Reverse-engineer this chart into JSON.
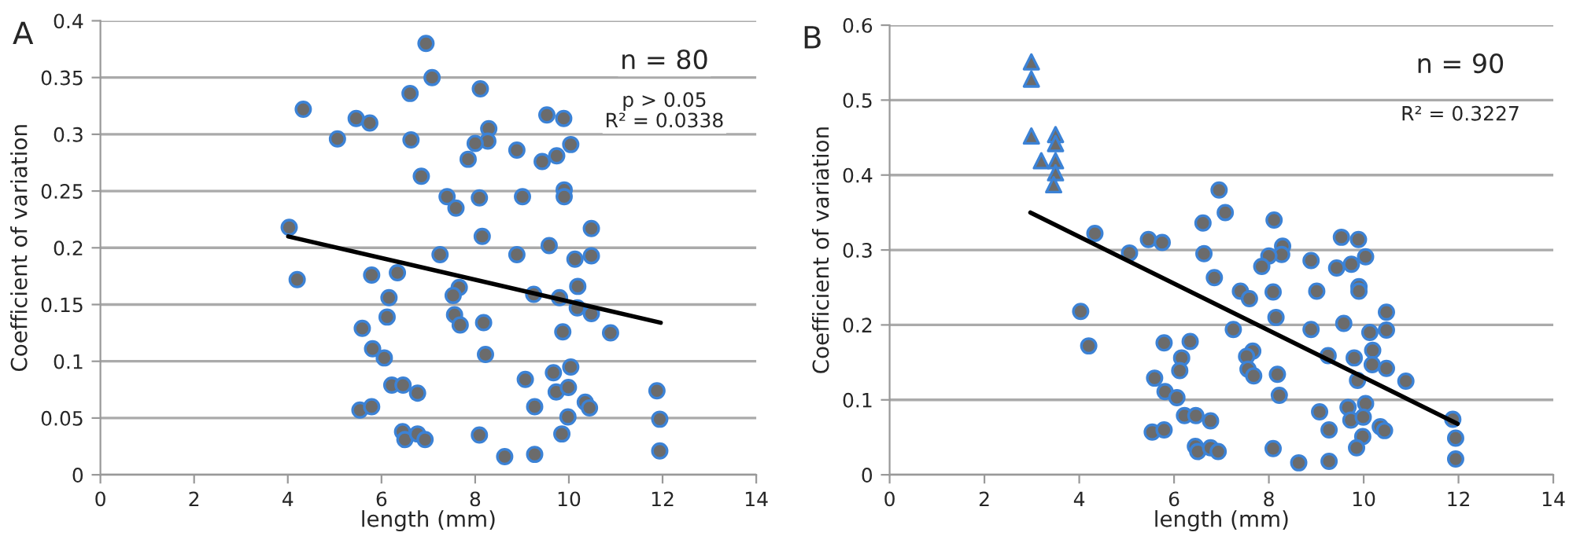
{
  "chart_data": [
    {
      "type": "scatter",
      "title": "A",
      "xlabel": "length (mm)",
      "ylabel": "Coefficient of variation",
      "xlim": [
        0,
        14
      ],
      "xticks": [
        0,
        2,
        4,
        6,
        8,
        10,
        12,
        14
      ],
      "ylim": [
        0,
        0.4
      ],
      "yticks": [
        0,
        0.05,
        0.1,
        0.15,
        0.2,
        0.25,
        0.3,
        0.35,
        0.4
      ],
      "grid": "y",
      "legend": false,
      "annotations": [
        "n = 80",
        "p > 0.05\nR² = 0.0338"
      ],
      "series": [
        {
          "type": "scatter",
          "marker": "circle",
          "color": "#6b6b6b",
          "x": [
            4.03,
            4.2,
            4.33,
            5.06,
            5.46,
            5.75,
            6.95,
            7.08,
            6.61,
            6.63,
            6.85,
            7.4,
            7.59,
            7.25,
            8.11,
            8.29,
            8.27,
            8.0,
            7.85,
            8.09,
            8.15,
            5.79,
            6.34,
            7.66,
            7.53,
            6.16,
            6.12,
            7.56,
            7.68,
            8.18,
            8.22,
            5.59,
            5.81,
            6.06,
            6.22,
            6.46,
            6.77,
            5.54,
            5.79,
            6.45,
            6.5,
            6.77,
            6.93,
            8.09,
            8.63,
            9.53,
            9.89,
            8.89,
            10.04,
            9.74,
            9.43,
            9.9,
            9.9,
            9.01,
            10.48,
            9.58,
            8.89,
            10.13,
            10.48,
            10.19,
            9.25,
            9.8,
            10.18,
            10.48,
            9.87,
            10.89,
            9.07,
            9.67,
            10.04,
            9.73,
            9.99,
            9.27,
            10.35,
            10.44,
            9.98,
            9.85,
            9.27,
            11.88,
            11.94,
            11.94
          ],
          "values": [
            0.218,
            0.172,
            0.322,
            0.296,
            0.314,
            0.31,
            0.38,
            0.35,
            0.336,
            0.295,
            0.263,
            0.245,
            0.235,
            0.194,
            0.34,
            0.305,
            0.294,
            0.292,
            0.278,
            0.244,
            0.21,
            0.176,
            0.178,
            0.165,
            0.158,
            0.156,
            0.139,
            0.141,
            0.132,
            0.134,
            0.106,
            0.129,
            0.111,
            0.103,
            0.079,
            0.079,
            0.072,
            0.057,
            0.06,
            0.038,
            0.031,
            0.036,
            0.031,
            0.035,
            0.016,
            0.317,
            0.314,
            0.286,
            0.291,
            0.281,
            0.276,
            0.251,
            0.245,
            0.245,
            0.217,
            0.202,
            0.194,
            0.19,
            0.193,
            0.166,
            0.159,
            0.156,
            0.147,
            0.142,
            0.126,
            0.125,
            0.084,
            0.09,
            0.095,
            0.073,
            0.077,
            0.06,
            0.064,
            0.059,
            0.051,
            0.036,
            0.018,
            0.074,
            0.049,
            0.021
          ]
        },
        {
          "type": "line",
          "color": "#000000",
          "x": [
            4.01,
            11.96
          ],
          "values": [
            0.21,
            0.134
          ]
        }
      ]
    },
    {
      "type": "scatter",
      "title": "B",
      "xlabel": "length (mm)",
      "ylabel": "Coefficient of variation",
      "xlim": [
        0,
        14
      ],
      "xticks": [
        0,
        2,
        4,
        6,
        8,
        10,
        12,
        14
      ],
      "ylim": [
        0,
        0.6
      ],
      "yticks": [
        0,
        0.1,
        0.2,
        0.3,
        0.4,
        0.5,
        0.6
      ],
      "grid": "y",
      "legend": false,
      "annotations": [
        "n = 90",
        "R² = 0.3227"
      ],
      "series": [
        {
          "type": "scatter",
          "marker": "circle",
          "color": "#6b6b6b",
          "x": [
            4.03,
            4.2,
            4.33,
            5.06,
            5.46,
            5.75,
            6.95,
            7.08,
            6.61,
            6.63,
            6.85,
            7.4,
            7.59,
            7.25,
            8.11,
            8.29,
            8.27,
            8.0,
            7.85,
            8.09,
            8.15,
            5.79,
            6.34,
            7.66,
            7.53,
            6.16,
            6.12,
            7.56,
            7.68,
            8.18,
            8.22,
            5.59,
            5.81,
            6.06,
            6.22,
            6.46,
            6.77,
            5.54,
            5.79,
            6.45,
            6.5,
            6.77,
            6.93,
            8.09,
            8.63,
            9.53,
            9.89,
            8.89,
            10.04,
            9.74,
            9.43,
            9.9,
            9.9,
            9.01,
            10.48,
            9.58,
            8.89,
            10.13,
            10.48,
            10.19,
            9.25,
            9.8,
            10.18,
            10.48,
            9.87,
            10.89,
            9.07,
            9.67,
            10.04,
            9.73,
            9.99,
            9.27,
            10.35,
            10.44,
            9.98,
            9.85,
            9.27,
            11.88,
            11.94,
            11.94
          ],
          "values": [
            0.218,
            0.172,
            0.322,
            0.296,
            0.314,
            0.31,
            0.38,
            0.35,
            0.336,
            0.295,
            0.263,
            0.245,
            0.235,
            0.194,
            0.34,
            0.305,
            0.294,
            0.292,
            0.278,
            0.244,
            0.21,
            0.176,
            0.178,
            0.165,
            0.158,
            0.156,
            0.139,
            0.141,
            0.132,
            0.134,
            0.106,
            0.129,
            0.111,
            0.103,
            0.079,
            0.079,
            0.072,
            0.057,
            0.06,
            0.038,
            0.031,
            0.036,
            0.031,
            0.035,
            0.016,
            0.317,
            0.314,
            0.286,
            0.291,
            0.281,
            0.276,
            0.251,
            0.245,
            0.245,
            0.217,
            0.202,
            0.194,
            0.19,
            0.193,
            0.166,
            0.159,
            0.156,
            0.147,
            0.142,
            0.126,
            0.125,
            0.084,
            0.09,
            0.095,
            0.073,
            0.077,
            0.06,
            0.064,
            0.059,
            0.051,
            0.036,
            0.018,
            0.074,
            0.049,
            0.021
          ]
        },
        {
          "marker": "triangle",
          "color": "#6b6b6b",
          "x": [
            2.99,
            2.99,
            2.99,
            3.2,
            3.5,
            3.5,
            3.5,
            3.5,
            3.46
          ],
          "values": [
            0.551,
            0.528,
            0.452,
            0.419,
            0.454,
            0.442,
            0.419,
            0.403,
            0.387
          ]
        },
        {
          "type": "line",
          "color": "#000000",
          "x": [
            2.97,
            11.98
          ],
          "values": [
            0.35,
            0.068
          ]
        }
      ]
    }
  ]
}
